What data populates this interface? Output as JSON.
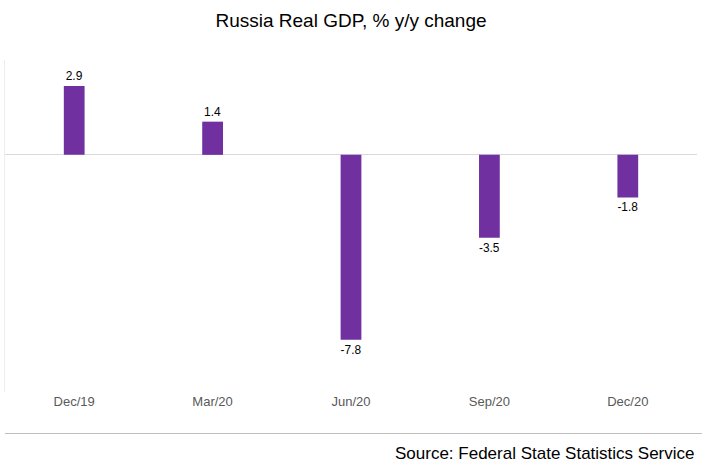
{
  "chart_data": {
    "type": "bar",
    "title": "Russia Real GDP, % y/y change",
    "categories": [
      "Dec/19",
      "Mar/20",
      "Jun/20",
      "Sep/20",
      "Dec/20"
    ],
    "values": [
      2.9,
      1.4,
      -7.8,
      -3.5,
      -1.8
    ],
    "color": "#7030a0",
    "ylim": [
      -10,
      4
    ],
    "grid": false,
    "data_labels": true,
    "tick_labels": "x",
    "source": "Source: Federal State Statistics Service"
  }
}
